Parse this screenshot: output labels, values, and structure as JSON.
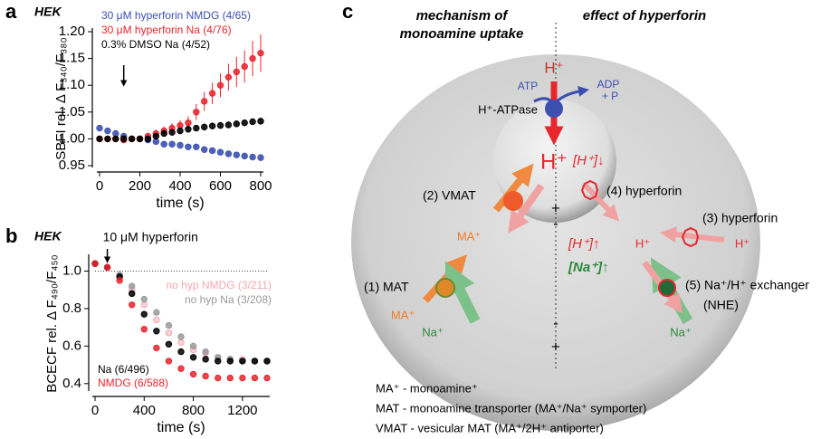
{
  "chart_data": [
    {
      "type": "line",
      "panel_label": "a",
      "title": "HEK",
      "xlabel": "time (s)",
      "ylabel": "SBFI rel. Δ F₃₄₀/F₃₈₀",
      "x": [
        0,
        40,
        80,
        120,
        160,
        200,
        240,
        280,
        320,
        360,
        400,
        440,
        480,
        520,
        560,
        600,
        640,
        680,
        720,
        760,
        800
      ],
      "series": [
        {
          "name": "30 μM hyperforin NMDG (4/65)",
          "color": "#3a4fb0",
          "values": [
            1.02,
            1.015,
            1.01,
            1.005,
            1.0,
            1.0,
            0.998,
            0.995,
            0.99,
            0.99,
            0.988,
            0.985,
            0.985,
            0.98,
            0.978,
            0.975,
            0.972,
            0.97,
            0.968,
            0.966,
            0.965
          ],
          "errors": [
            0.003,
            0.003,
            0.003,
            0.003,
            0.003,
            0.003,
            0.003,
            0.003,
            0.003,
            0.003,
            0.003,
            0.003,
            0.003,
            0.003,
            0.003,
            0.003,
            0.003,
            0.003,
            0.003,
            0.003,
            0.003
          ]
        },
        {
          "name": "30 μM hyperforin Na (4/76)",
          "color": "#e8262e",
          "values": [
            1.0,
            1.0,
            1.0,
            0.998,
            1.0,
            1.0,
            1.005,
            1.01,
            1.015,
            1.02,
            1.025,
            1.03,
            1.05,
            1.07,
            1.085,
            1.1,
            1.115,
            1.125,
            1.135,
            1.15,
            1.16
          ],
          "errors": [
            0.004,
            0.004,
            0.004,
            0.004,
            0.005,
            0.005,
            0.006,
            0.007,
            0.008,
            0.009,
            0.01,
            0.012,
            0.015,
            0.018,
            0.02,
            0.022,
            0.025,
            0.028,
            0.03,
            0.033,
            0.035
          ]
        },
        {
          "name": "0.3% DMSO Na (4/52)",
          "color": "#000000",
          "values": [
            1.0,
            1.0,
            1.0,
            1.0,
            1.0,
            1.0,
            1.0,
            1.005,
            1.01,
            1.012,
            1.015,
            1.018,
            1.02,
            1.022,
            1.024,
            1.025,
            1.026,
            1.028,
            1.03,
            1.032,
            1.033
          ],
          "errors": [
            0.004,
            0.004,
            0.004,
            0.004,
            0.004,
            0.004,
            0.004,
            0.005,
            0.005,
            0.005,
            0.005,
            0.005,
            0.005,
            0.006,
            0.006,
            0.006,
            0.006,
            0.006,
            0.006,
            0.006,
            0.006
          ]
        }
      ],
      "arrow_x": 120,
      "xlim": [
        0,
        800
      ],
      "xticks": [
        0,
        200,
        400,
        600,
        800
      ],
      "ylim": [
        0.95,
        1.2
      ],
      "yticks": [
        {
          "value": 0.95,
          "label": "0.95"
        },
        {
          "value": 1.0,
          "label": "1.00"
        },
        {
          "value": 1.05,
          "label": "1.05"
        },
        {
          "value": 1.1,
          "label": "1.10"
        },
        {
          "value": 1.15,
          "label": "1.15"
        },
        {
          "value": 1.2,
          "label": "1.20"
        }
      ]
    },
    {
      "type": "line",
      "panel_label": "b",
      "title": "HEK",
      "xlabel": "time (s)",
      "ylabel": "BCECF rel. Δ F₄₉₀/F₄₅₀",
      "annotation": "10 μM hyperforin",
      "arrow_x": 100,
      "hline": 1,
      "x": [
        0,
        100,
        200,
        300,
        400,
        500,
        600,
        700,
        800,
        900,
        1000,
        1100,
        1200,
        1300,
        1400
      ],
      "series": [
        {
          "name": "no hyp NMDG (3/211)",
          "color": "#f2a7ae",
          "values": [
            1.04,
            1.02,
            0.97,
            0.9,
            0.82,
            0.74,
            0.67,
            0.62,
            0.58,
            0.56,
            0.54,
            0.53,
            0.53,
            0.52,
            0.52
          ]
        },
        {
          "name": "no hyp Na (3/208)",
          "color": "#9a9a9a",
          "values": [
            1.04,
            1.02,
            0.98,
            0.92,
            0.85,
            0.78,
            0.71,
            0.65,
            0.6,
            0.57,
            0.54,
            0.53,
            0.52,
            0.52,
            0.52
          ]
        },
        {
          "name": "Na (6/496)",
          "color": "#000000",
          "values": [
            1.04,
            1.02,
            0.97,
            0.88,
            0.77,
            0.68,
            0.61,
            0.57,
            0.54,
            0.53,
            0.52,
            0.52,
            0.52,
            0.52,
            0.52
          ]
        },
        {
          "name": "NMDG (6/588)",
          "color": "#e8262e",
          "values": [
            1.04,
            1.02,
            0.95,
            0.82,
            0.69,
            0.59,
            0.52,
            0.48,
            0.45,
            0.44,
            0.43,
            0.43,
            0.43,
            0.43,
            0.43
          ]
        }
      ],
      "xlim": [
        0,
        1400
      ],
      "xticks": [
        0,
        400,
        800,
        1200
      ],
      "ylim": [
        0.37,
        1.07
      ],
      "yticks": [
        0.4,
        0.6,
        0.8,
        {
          "value": 1.0,
          "label": "1.0"
        }
      ]
    }
  ],
  "diagram": {
    "panel_label": "c",
    "labels": [
      "mechanism of",
      "monoamine uptake",
      "effect of hyperforin",
      "H⁺",
      "ATP",
      "ADP",
      "+ P",
      "H⁺-ATPase",
      "H⁺",
      "[H⁺]↓",
      "(2) VMAT",
      "(4) hyperforin",
      "(3) hyperforin",
      "MA⁺",
      "H⁺",
      "H⁺",
      "[H⁺]↑",
      "[Na⁺]↑",
      "(1) MAT",
      "(5) Na⁺/H⁺ exchanger",
      "(NHE)",
      "MA⁺",
      "Na⁺",
      "Na⁺",
      "+",
      "-",
      "-",
      "+"
    ],
    "footnotes": [
      "MA⁺ - monoamine⁺",
      "MAT - monoamine transporter (MA⁺/Na⁺ symporter)",
      "VMAT - vesicular MAT (MA⁺/2H⁺ antiporter)"
    ]
  }
}
